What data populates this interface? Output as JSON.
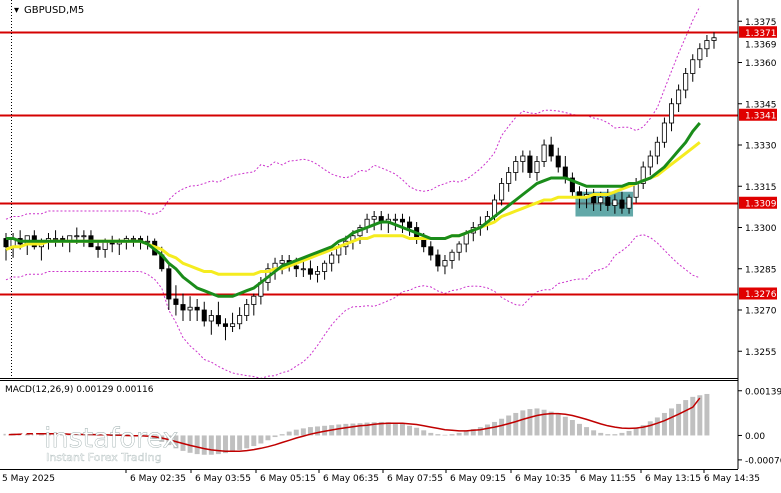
{
  "colors": {
    "background": "#ffffff",
    "bull_candle": "#ffffff",
    "bear_candle": "#000000",
    "candle_outline": "#000000",
    "ma_fast": "#1a8c1a",
    "ma_slow": "#f5ec1f",
    "bands": "#cc33cc",
    "levels": "#d40000",
    "level_label_bg": "#e00000",
    "level_label_text": "#ffffff",
    "current_label_bg": "#e00000",
    "macd_hist": "#c0c0c0",
    "macd_signal": "#c00000",
    "highlight_box": "#2e8b8b",
    "watermark": "#ffffff"
  },
  "chart_data": [
    {
      "type": "candlestick",
      "title": "GBPUSD,M5",
      "price_axis_ticks": [
        "1.3375",
        "1.3360",
        "1.3345",
        "1.3330",
        "1.3315",
        "1.3300",
        "1.3285",
        "1.3270",
        "1.3255"
      ],
      "ylim": [
        1.3246,
        1.3382
      ],
      "level_lines": [
        {
          "value": 1.3371,
          "label": "1.3371"
        },
        {
          "value": 1.3341,
          "label": "1.3341"
        },
        {
          "value": 1.3309,
          "label": "1.3309"
        },
        {
          "value": 1.3276,
          "label": "1.3276"
        }
      ],
      "current_price": {
        "value": 1.3369,
        "label": "1.3369"
      },
      "time_axis_labels": [
        "5 May 2025",
        "6 May 02:35",
        "6 May 03:55",
        "6 May 05:15",
        "6 May 06:35",
        "6 May 07:55",
        "6 May 09:15",
        "6 May 10:35",
        "6 May 11:55",
        "6 May 13:15",
        "6 May 14:35"
      ],
      "candles": [
        [
          1.3296,
          1.3298,
          1.3288,
          1.3293
        ],
        [
          1.3293,
          1.3298,
          1.3289,
          1.3296
        ],
        [
          1.3296,
          1.3299,
          1.3292,
          1.3294
        ],
        [
          1.3294,
          1.3296,
          1.329,
          1.3297
        ],
        [
          1.3297,
          1.3299,
          1.3292,
          1.3293
        ],
        [
          1.3293,
          1.3296,
          1.3288,
          1.3295
        ],
        [
          1.3295,
          1.3298,
          1.3292,
          1.3296
        ],
        [
          1.3296,
          1.3299,
          1.3293,
          1.3296
        ],
        [
          1.3296,
          1.3297,
          1.3293,
          1.3295
        ],
        [
          1.3295,
          1.3297,
          1.3291,
          1.3297
        ],
        [
          1.3297,
          1.33,
          1.3294,
          1.3297
        ],
        [
          1.3297,
          1.3299,
          1.3293,
          1.3297
        ],
        [
          1.3297,
          1.3299,
          1.3293,
          1.3293
        ],
        [
          1.3293,
          1.3295,
          1.3289,
          1.3292
        ],
        [
          1.3292,
          1.3296,
          1.3289,
          1.3295
        ],
        [
          1.3295,
          1.3297,
          1.3291,
          1.3294
        ],
        [
          1.3294,
          1.3296,
          1.329,
          1.3295
        ],
        [
          1.3295,
          1.3297,
          1.3292,
          1.3296
        ],
        [
          1.3296,
          1.3297,
          1.3293,
          1.3296
        ],
        [
          1.3296,
          1.3297,
          1.3292,
          1.3295
        ],
        [
          1.3295,
          1.3297,
          1.3292,
          1.3295
        ],
        [
          1.3295,
          1.3296,
          1.329,
          1.329
        ],
        [
          1.329,
          1.3293,
          1.3284,
          1.3285
        ],
        [
          1.3285,
          1.3287,
          1.327,
          1.3274
        ],
        [
          1.3274,
          1.3279,
          1.3268,
          1.3272
        ],
        [
          1.3272,
          1.3276,
          1.3266,
          1.327
        ],
        [
          1.327,
          1.3275,
          1.3266,
          1.3271
        ],
        [
          1.3271,
          1.3274,
          1.3266,
          1.327
        ],
        [
          1.327,
          1.3273,
          1.3264,
          1.3266
        ],
        [
          1.3266,
          1.327,
          1.3261,
          1.3268
        ],
        [
          1.3268,
          1.3273,
          1.3264,
          1.3265
        ],
        [
          1.3265,
          1.3267,
          1.3259,
          1.3264
        ],
        [
          1.3264,
          1.3269,
          1.3262,
          1.3265
        ],
        [
          1.3265,
          1.3271,
          1.3263,
          1.3268
        ],
        [
          1.3268,
          1.3274,
          1.3266,
          1.3272
        ],
        [
          1.3272,
          1.3276,
          1.3268,
          1.3275
        ],
        [
          1.3275,
          1.3282,
          1.3272,
          1.328
        ],
        [
          1.328,
          1.3287,
          1.3277,
          1.3285
        ],
        [
          1.3285,
          1.3289,
          1.3281,
          1.3287
        ],
        [
          1.3287,
          1.329,
          1.3283,
          1.3288
        ],
        [
          1.3288,
          1.329,
          1.3284,
          1.3286
        ],
        [
          1.3286,
          1.3289,
          1.3282,
          1.3285
        ],
        [
          1.3285,
          1.3288,
          1.3282,
          1.3285
        ],
        [
          1.3285,
          1.3288,
          1.3281,
          1.3283
        ],
        [
          1.3283,
          1.3286,
          1.328,
          1.3284
        ],
        [
          1.3284,
          1.3288,
          1.3281,
          1.3287
        ],
        [
          1.3287,
          1.3291,
          1.3284,
          1.329
        ],
        [
          1.329,
          1.3294,
          1.3287,
          1.3293
        ],
        [
          1.3293,
          1.3297,
          1.329,
          1.3295
        ],
        [
          1.3295,
          1.3299,
          1.3292,
          1.3297
        ],
        [
          1.3297,
          1.3301,
          1.3294,
          1.33
        ],
        [
          1.33,
          1.3305,
          1.3298,
          1.3303
        ],
        [
          1.3303,
          1.3306,
          1.3299,
          1.3304
        ],
        [
          1.3304,
          1.3306,
          1.3299,
          1.3302
        ],
        [
          1.3302,
          1.3305,
          1.3298,
          1.3303
        ],
        [
          1.3303,
          1.3305,
          1.3299,
          1.3303
        ],
        [
          1.3303,
          1.3305,
          1.3298,
          1.3302
        ],
        [
          1.3302,
          1.3304,
          1.3297,
          1.33
        ],
        [
          1.33,
          1.3302,
          1.3294,
          1.3296
        ],
        [
          1.3296,
          1.3298,
          1.3291,
          1.3293
        ],
        [
          1.3293,
          1.3295,
          1.3288,
          1.329
        ],
        [
          1.329,
          1.3292,
          1.3284,
          1.3286
        ],
        [
          1.3286,
          1.329,
          1.3283,
          1.3288
        ],
        [
          1.3288,
          1.3292,
          1.3285,
          1.3291
        ],
        [
          1.3291,
          1.3295,
          1.3288,
          1.3294
        ],
        [
          1.3294,
          1.3299,
          1.3291,
          1.3298
        ],
        [
          1.3298,
          1.3302,
          1.3295,
          1.33
        ],
        [
          1.33,
          1.3304,
          1.3297,
          1.3301
        ],
        [
          1.3301,
          1.3306,
          1.3299,
          1.3304
        ],
        [
          1.3304,
          1.3312,
          1.3302,
          1.331
        ],
        [
          1.331,
          1.3318,
          1.3308,
          1.3316
        ],
        [
          1.3316,
          1.3322,
          1.3313,
          1.332
        ],
        [
          1.332,
          1.3326,
          1.3317,
          1.3324
        ],
        [
          1.3324,
          1.3328,
          1.332,
          1.3326
        ],
        [
          1.3326,
          1.3328,
          1.3318,
          1.332
        ],
        [
          1.332,
          1.3326,
          1.3317,
          1.3324
        ],
        [
          1.3324,
          1.3332,
          1.3322,
          1.333
        ],
        [
          1.333,
          1.3333,
          1.3324,
          1.3326
        ],
        [
          1.3326,
          1.3329,
          1.332,
          1.3322
        ],
        [
          1.3322,
          1.3326,
          1.3316,
          1.3318
        ],
        [
          1.3318,
          1.332,
          1.3311,
          1.3313
        ],
        [
          1.3313,
          1.3315,
          1.3307,
          1.3311
        ],
        [
          1.3311,
          1.3314,
          1.3307,
          1.3312
        ],
        [
          1.3312,
          1.3314,
          1.3306,
          1.3309
        ],
        [
          1.3309,
          1.3313,
          1.3306,
          1.3311
        ],
        [
          1.3311,
          1.3314,
          1.3306,
          1.3308
        ],
        [
          1.3308,
          1.3312,
          1.3305,
          1.331
        ],
        [
          1.331,
          1.3313,
          1.3305,
          1.3307
        ],
        [
          1.3307,
          1.3312,
          1.3305,
          1.3311
        ],
        [
          1.3311,
          1.3318,
          1.3309,
          1.3316
        ],
        [
          1.3316,
          1.3324,
          1.3314,
          1.3322
        ],
        [
          1.3322,
          1.3328,
          1.3319,
          1.3326
        ],
        [
          1.3326,
          1.3333,
          1.3323,
          1.3331
        ],
        [
          1.3331,
          1.334,
          1.3329,
          1.3338
        ],
        [
          1.3338,
          1.3347,
          1.3335,
          1.3345
        ],
        [
          1.3345,
          1.3352,
          1.3342,
          1.335
        ],
        [
          1.335,
          1.3358,
          1.3347,
          1.3356
        ],
        [
          1.3356,
          1.3363,
          1.3353,
          1.3361
        ],
        [
          1.3361,
          1.3367,
          1.3358,
          1.3365
        ],
        [
          1.3365,
          1.337,
          1.3362,
          1.3368
        ],
        [
          1.3368,
          1.3371,
          1.3365,
          1.3369
        ]
      ],
      "ma_fast": [
        1.3296,
        1.3296,
        1.3295,
        1.3295,
        1.3295,
        1.3295,
        1.3295,
        1.3295,
        1.3295,
        1.3295,
        1.3295,
        1.3295,
        1.3295,
        1.3295,
        1.3295,
        1.3295,
        1.3295,
        1.3295,
        1.3295,
        1.3295,
        1.3294,
        1.3292,
        1.329,
        1.3287,
        1.3285,
        1.3282,
        1.328,
        1.3278,
        1.3277,
        1.3276,
        1.3275,
        1.3275,
        1.3275,
        1.3276,
        1.3277,
        1.3278,
        1.328,
        1.3282,
        1.3284,
        1.3286,
        1.3287,
        1.3288,
        1.3289,
        1.329,
        1.3291,
        1.3292,
        1.3293,
        1.3295,
        1.3296,
        1.3298,
        1.3299,
        1.33,
        1.3301,
        1.3302,
        1.3302,
        1.3301,
        1.33,
        1.3299,
        1.3298,
        1.3297,
        1.3296,
        1.3296,
        1.3296,
        1.3297,
        1.3297,
        1.3298,
        1.3299,
        1.33,
        1.3302,
        1.3304,
        1.3306,
        1.3308,
        1.331,
        1.3312,
        1.3314,
        1.3316,
        1.3317,
        1.3318,
        1.3318,
        1.3318,
        1.3317,
        1.3316,
        1.3315,
        1.3315,
        1.3315,
        1.3315,
        1.3315,
        1.3315,
        1.3316,
        1.3316,
        1.3317,
        1.3318,
        1.332,
        1.3322,
        1.3325,
        1.3328,
        1.3331,
        1.3335,
        1.3338
      ],
      "ma_slow": [
        1.3292,
        1.3293,
        1.3293,
        1.3294,
        1.3294,
        1.3294,
        1.3295,
        1.3295,
        1.3295,
        1.3295,
        1.3295,
        1.3295,
        1.3295,
        1.3295,
        1.3295,
        1.3295,
        1.3295,
        1.3295,
        1.3295,
        1.3295,
        1.3294,
        1.3293,
        1.3292,
        1.329,
        1.3289,
        1.3287,
        1.3286,
        1.3285,
        1.3284,
        1.3284,
        1.3283,
        1.3283,
        1.3283,
        1.3283,
        1.3283,
        1.3283,
        1.3284,
        1.3284,
        1.3285,
        1.3285,
        1.3286,
        1.3287,
        1.3288,
        1.3289,
        1.329,
        1.3291,
        1.3292,
        1.3293,
        1.3294,
        1.3295,
        1.3296,
        1.3296,
        1.3297,
        1.3297,
        1.3297,
        1.3297,
        1.3297,
        1.3296,
        1.3296,
        1.3296,
        1.3296,
        1.3296,
        1.3296,
        1.3297,
        1.3297,
        1.3298,
        1.3299,
        1.33,
        1.3301,
        1.3302,
        1.3304,
        1.3305,
        1.3306,
        1.3307,
        1.3308,
        1.3309,
        1.331,
        1.331,
        1.3311,
        1.3311,
        1.3311,
        1.3311,
        1.3311,
        1.3312,
        1.3312,
        1.3312,
        1.3313,
        1.3314,
        1.3315,
        1.3316,
        1.3317,
        1.3318,
        1.3319,
        1.3321,
        1.3323,
        1.3325,
        1.3327,
        1.3329,
        1.3331
      ],
      "highlight_zone": {
        "index_from": 81,
        "index_to": 88,
        "price_low": 1.3304,
        "price_high": 1.3313
      }
    },
    {
      "type": "histogram",
      "title": "MACD(12,26,9) 0.00129 0.00116",
      "axis_ticks": [
        "0.00139",
        "0.00",
        "-0.00076"
      ],
      "ylim": [
        -0.00095,
        0.0016
      ],
      "histogram": [
        5e-05,
        6e-05,
        6e-05,
        5e-05,
        5e-05,
        4e-05,
        4e-05,
        3e-05,
        3e-05,
        3e-05,
        2e-05,
        2e-05,
        2e-05,
        1e-05,
        1e-05,
        0.0,
        0.0,
        -1e-05,
        -1e-05,
        -2e-05,
        -4e-05,
        -0.0001,
        -0.0002,
        -0.0003,
        -0.0004,
        -0.00048,
        -0.00054,
        -0.00058,
        -0.0006,
        -0.0006,
        -0.00058,
        -0.00055,
        -0.0005,
        -0.00045,
        -0.0004,
        -0.00033,
        -0.00025,
        -0.00015,
        -5e-05,
        4e-05,
        0.00012,
        0.00018,
        0.00022,
        0.00026,
        0.00028,
        0.0003,
        0.00032,
        0.00034,
        0.00036,
        0.00037,
        0.00038,
        0.0004,
        0.00041,
        0.00042,
        0.00041,
        0.00039,
        0.00036,
        0.0003,
        0.00024,
        0.00016,
        8e-05,
        4e-05,
        2e-05,
        4e-05,
        8e-05,
        0.00014,
        0.0002,
        0.00026,
        0.00034,
        0.00042,
        0.00052,
        0.00062,
        0.0007,
        0.00078,
        0.00082,
        0.00084,
        0.0008,
        0.00074,
        0.00066,
        0.00058,
        0.00048,
        0.00036,
        0.00026,
        0.00016,
        8e-05,
        4e-05,
        4e-05,
        8e-05,
        0.00014,
        0.00022,
        0.00032,
        0.00044,
        0.00056,
        0.0007,
        0.00084,
        0.00098,
        0.0011,
        0.0012,
        0.00125,
        0.00129
      ],
      "signal": [
        2e-05,
        3e-05,
        4e-05,
        5e-05,
        5e-05,
        5e-05,
        5e-05,
        5e-05,
        5e-05,
        4e-05,
        4e-05,
        3e-05,
        3e-05,
        2e-05,
        2e-05,
        1e-05,
        1e-05,
        0.0,
        -1e-05,
        -1e-05,
        -2e-05,
        -4e-05,
        -8e-05,
        -0.00013,
        -0.00019,
        -0.00025,
        -0.00031,
        -0.00036,
        -0.00041,
        -0.00045,
        -0.00047,
        -0.00049,
        -0.00049,
        -0.00049,
        -0.00047,
        -0.00044,
        -0.0004,
        -0.00035,
        -0.00029,
        -0.00022,
        -0.00015,
        -8e-05,
        -2e-05,
        4e-05,
        9e-05,
        0.00013,
        0.00017,
        0.00021,
        0.00024,
        0.00027,
        0.0003,
        0.00032,
        0.00035,
        0.00037,
        0.00038,
        0.00038,
        0.00038,
        0.00036,
        0.00034,
        0.0003,
        0.00026,
        0.00022,
        0.00018,
        0.00016,
        0.00014,
        0.00014,
        0.00016,
        0.00018,
        0.00022,
        0.00026,
        0.00031,
        0.00037,
        0.00043,
        0.0005,
        0.00056,
        0.00062,
        0.00066,
        0.00068,
        0.00068,
        0.00066,
        0.00062,
        0.00056,
        0.0005,
        0.00043,
        0.00036,
        0.0003,
        0.00026,
        0.00023,
        0.00022,
        0.00023,
        0.00026,
        0.00031,
        0.00038,
        0.00046,
        0.00056,
        0.00066,
        0.00077,
        0.00088,
        0.00116
      ]
    }
  ],
  "watermark": {
    "brand": "instaforex",
    "tagline": "Instant Forex Trading"
  }
}
